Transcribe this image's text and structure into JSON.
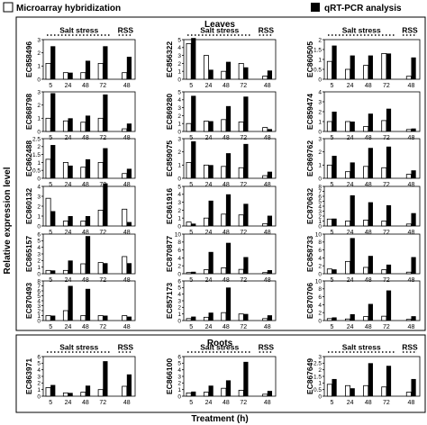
{
  "legend": {
    "microarray_label": "Microarray hybridization",
    "qrt_label": "qRT-PCR analysis",
    "microarray_color": "#ffffff",
    "qrt_color": "#000000"
  },
  "section_labels": {
    "leaves": "Leaves",
    "roots": "Roots"
  },
  "axis": {
    "ylabel": "Relative expression level",
    "xlabel": "Treatment (h)",
    "x_ticks": [
      "5",
      "24",
      "48",
      "72",
      "48"
    ],
    "salt_label": "Salt stress",
    "rss_label": "RSS"
  },
  "chart_data": [
    {
      "type": "bar",
      "gene": "EC858496",
      "ylim": [
        0,
        3
      ],
      "y_ticks": [
        0,
        1,
        2,
        3
      ],
      "categories": [
        "5",
        "24",
        "48",
        "72",
        "48"
      ],
      "series": [
        {
          "name": "Microarray hybridization",
          "values": [
            1.2,
            0.5,
            0.5,
            1.2,
            0.5
          ]
        },
        {
          "name": "qRT-PCR analysis",
          "values": [
            2.5,
            0.5,
            1.4,
            2.5,
            1.7
          ]
        }
      ]
    },
    {
      "type": "bar",
      "gene": "EC856322",
      "ylim": [
        0,
        5
      ],
      "y_ticks": [
        0,
        1,
        2,
        3,
        4,
        5
      ],
      "categories": [
        "5",
        "24",
        "48",
        "72",
        "48"
      ],
      "series": [
        {
          "name": "Microarray hybridization",
          "values": [
            4.5,
            3.0,
            1.0,
            2.0,
            0.4
          ]
        },
        {
          "name": "qRT-PCR analysis",
          "values": [
            5.2,
            1.2,
            2.2,
            1.5,
            1.1
          ]
        }
      ]
    },
    {
      "type": "bar",
      "gene": "EC860505",
      "ylim": [
        0,
        2
      ],
      "y_ticks": [
        0,
        0.5,
        1,
        1.5,
        2
      ],
      "categories": [
        "5",
        "24",
        "48",
        "72",
        "48"
      ],
      "series": [
        {
          "name": "Microarray hybridization",
          "values": [
            0.9,
            0.5,
            0.7,
            1.3,
            0.15
          ]
        },
        {
          "name": "qRT-PCR analysis",
          "values": [
            1.7,
            1.2,
            1.2,
            1.3,
            1.1
          ]
        }
      ]
    },
    {
      "type": "bar",
      "gene": "EC868798",
      "ylim": [
        0,
        3
      ],
      "y_ticks": [
        0,
        1,
        2,
        3
      ],
      "categories": [
        "5",
        "24",
        "48",
        "72",
        "48"
      ],
      "series": [
        {
          "name": "Microarray hybridization",
          "values": [
            1.0,
            0.8,
            0.7,
            1.0,
            0.2
          ]
        },
        {
          "name": "qRT-PCR analysis",
          "values": [
            2.9,
            1.0,
            1.2,
            2.8,
            0.6
          ]
        }
      ]
    },
    {
      "type": "bar",
      "gene": "EC869280",
      "ylim": [
        0,
        5
      ],
      "y_ticks": [
        0,
        1,
        2,
        3,
        4,
        5
      ],
      "categories": [
        "5",
        "24",
        "48",
        "72",
        "48"
      ],
      "series": [
        {
          "name": "Microarray hybridization",
          "values": [
            1.0,
            1.3,
            1.5,
            1.2,
            0.5
          ]
        },
        {
          "name": "qRT-PCR analysis",
          "values": [
            4.5,
            1.3,
            3.2,
            4.4,
            0.3
          ]
        }
      ]
    },
    {
      "type": "bar",
      "gene": "EC859474",
      "ylim": [
        0,
        4
      ],
      "y_ticks": [
        0,
        1,
        2,
        3,
        4
      ],
      "categories": [
        "5",
        "24",
        "48",
        "72",
        "48"
      ],
      "series": [
        {
          "name": "Microarray hybridization",
          "values": [
            1.0,
            1.0,
            0.5,
            1.1,
            0.2
          ]
        },
        {
          "name": "qRT-PCR analysis",
          "values": [
            2.0,
            1.0,
            1.8,
            2.3,
            0.3
          ]
        }
      ]
    },
    {
      "type": "bar",
      "gene": "EC862488",
      "ylim": [
        0,
        2.5
      ],
      "y_ticks": [
        0,
        0.5,
        1,
        1.5,
        2,
        2.5
      ],
      "categories": [
        "5",
        "24",
        "48",
        "72",
        "48"
      ],
      "series": [
        {
          "name": "Microarray hybridization",
          "values": [
            1.2,
            1.0,
            0.7,
            1.0,
            0.3
          ]
        },
        {
          "name": "qRT-PCR analysis",
          "values": [
            2.1,
            0.8,
            1.2,
            1.9,
            0.6
          ]
        }
      ]
    },
    {
      "type": "bar",
      "gene": "EC859075",
      "ylim": [
        0,
        3
      ],
      "y_ticks": [
        0,
        1,
        2,
        3
      ],
      "categories": [
        "5",
        "24",
        "48",
        "72",
        "48"
      ],
      "series": [
        {
          "name": "Microarray hybridization",
          "values": [
            1.2,
            1.0,
            0.9,
            0.8,
            0.2
          ]
        },
        {
          "name": "qRT-PCR analysis",
          "values": [
            2.8,
            1.0,
            1.9,
            2.6,
            0.5
          ]
        }
      ]
    },
    {
      "type": "bar",
      "gene": "EC869762",
      "ylim": [
        0,
        3
      ],
      "y_ticks": [
        0,
        1,
        2,
        3
      ],
      "categories": [
        "5",
        "24",
        "48",
        "72",
        "48"
      ],
      "series": [
        {
          "name": "Microarray hybridization",
          "values": [
            1.0,
            0.5,
            0.9,
            0.8,
            0.3
          ]
        },
        {
          "name": "qRT-PCR analysis",
          "values": [
            1.7,
            1.2,
            2.3,
            2.4,
            0.6
          ]
        }
      ]
    },
    {
      "type": "bar",
      "gene": "EC860132",
      "ylim": [
        0,
        4
      ],
      "y_ticks": [
        0,
        1,
        2,
        3,
        4
      ],
      "categories": [
        "5",
        "24",
        "48",
        "72",
        "48"
      ],
      "series": [
        {
          "name": "Microarray hybridization",
          "values": [
            2.8,
            0.5,
            0.5,
            1.6,
            1.7
          ]
        },
        {
          "name": "qRT-PCR analysis",
          "values": [
            1.5,
            1.0,
            1.0,
            4.3,
            0.4
          ]
        }
      ]
    },
    {
      "type": "bar",
      "gene": "EC861916",
      "ylim": [
        0,
        5
      ],
      "y_ticks": [
        0,
        1,
        2,
        3,
        4,
        5
      ],
      "categories": [
        "5",
        "24",
        "48",
        "72",
        "48"
      ],
      "series": [
        {
          "name": "Microarray hybridization",
          "values": [
            0.5,
            1.0,
            1.5,
            1.4,
            0.3
          ]
        },
        {
          "name": "qRT-PCR analysis",
          "values": [
            0.3,
            3.2,
            4.0,
            2.8,
            1.3
          ]
        }
      ]
    },
    {
      "type": "bar",
      "gene": "EC870632",
      "ylim": [
        0,
        8
      ],
      "y_ticks": [
        0,
        1,
        2,
        3,
        4,
        5,
        6,
        7,
        8
      ],
      "categories": [
        "5",
        "24",
        "48",
        "72",
        "48"
      ],
      "series": [
        {
          "name": "Microarray hybridization",
          "values": [
            1.4,
            1.0,
            1.2,
            1.0,
            0.4
          ]
        },
        {
          "name": "qRT-PCR analysis",
          "values": [
            1.5,
            6.2,
            4.8,
            4.2,
            2.6
          ]
        }
      ]
    },
    {
      "type": "bar",
      "gene": "EC865157",
      "ylim": [
        0,
        6
      ],
      "y_ticks": [
        0,
        1,
        2,
        3,
        4,
        5,
        6
      ],
      "categories": [
        "5",
        "24",
        "48",
        "72",
        "48"
      ],
      "series": [
        {
          "name": "Microarray hybridization",
          "values": [
            0.5,
            0.5,
            1.5,
            1.7,
            2.6
          ]
        },
        {
          "name": "qRT-PCR analysis",
          "values": [
            0.5,
            2.0,
            5.7,
            1.6,
            1.6
          ]
        }
      ]
    },
    {
      "type": "bar",
      "gene": "EC870877",
      "ylim": [
        0,
        10
      ],
      "y_ticks": [
        0,
        2,
        4,
        6,
        8,
        10
      ],
      "categories": [
        "5",
        "24",
        "48",
        "72",
        "48"
      ],
      "series": [
        {
          "name": "Microarray hybridization",
          "values": [
            0.3,
            1.0,
            1.5,
            1.1,
            0.3
          ]
        },
        {
          "name": "qRT-PCR analysis",
          "values": [
            0.5,
            5.5,
            7.8,
            4.2,
            0.9
          ]
        }
      ]
    },
    {
      "type": "bar",
      "gene": "EC858733",
      "ylim": [
        0,
        10
      ],
      "y_ticks": [
        0,
        2,
        4,
        6,
        8,
        10
      ],
      "categories": [
        "5",
        "24",
        "48",
        "72",
        "48"
      ],
      "series": [
        {
          "name": "Microarray hybridization",
          "values": [
            1.2,
            3.1,
            1.6,
            1.0,
            0.4
          ]
        },
        {
          "name": "qRT-PCR analysis",
          "values": [
            1.1,
            9.0,
            4.5,
            2.3,
            4.2
          ]
        }
      ]
    },
    {
      "type": "bar",
      "gene": "EC870493",
      "ylim": [
        0,
        8
      ],
      "y_ticks": [
        0,
        1,
        2,
        3,
        4,
        5,
        6,
        7,
        8
      ],
      "categories": [
        "5",
        "24",
        "48",
        "72",
        "48"
      ],
      "series": [
        {
          "name": "Microarray hybridization",
          "values": [
            1.0,
            2.0,
            1.0,
            1.0,
            1.0
          ]
        },
        {
          "name": "qRT-PCR analysis",
          "values": [
            1.0,
            7.0,
            6.4,
            1.0,
            0.8
          ]
        }
      ]
    },
    {
      "type": "bar",
      "gene": "EC857173",
      "ylim": [
        0,
        6
      ],
      "y_ticks": [
        0,
        1,
        2,
        3,
        4,
        5,
        6
      ],
      "categories": [
        "5",
        "24",
        "48",
        "72",
        "48"
      ],
      "series": [
        {
          "name": "Microarray hybridization",
          "values": [
            0.3,
            0.5,
            1.2,
            1.0,
            0.3
          ]
        },
        {
          "name": "qRT-PCR analysis",
          "values": [
            0.6,
            1.2,
            5.0,
            1.0,
            0.8
          ]
        }
      ]
    },
    {
      "type": "bar",
      "gene": "EC870706",
      "ylim": [
        0,
        10
      ],
      "y_ticks": [
        0,
        2,
        4,
        6,
        8,
        10
      ],
      "categories": [
        "5",
        "24",
        "48",
        "72",
        "48"
      ],
      "series": [
        {
          "name": "Microarray hybridization",
          "values": [
            0.5,
            0.4,
            1.0,
            1.1,
            0.3
          ]
        },
        {
          "name": "qRT-PCR analysis",
          "values": [
            0.8,
            1.6,
            4.2,
            7.6,
            1.1
          ]
        }
      ]
    },
    {
      "type": "bar",
      "gene": "EC863971",
      "ylim": [
        0,
        6
      ],
      "y_ticks": [
        0,
        1,
        2,
        3,
        4,
        5,
        6
      ],
      "categories": [
        "5",
        "24",
        "48",
        "72",
        "48"
      ],
      "series": [
        {
          "name": "Microarray hybridization",
          "values": [
            1.3,
            0.5,
            0.6,
            1.0,
            1.5
          ]
        },
        {
          "name": "qRT-PCR analysis",
          "values": [
            1.7,
            0.5,
            1.6,
            5.3,
            3.3
          ]
        }
      ]
    },
    {
      "type": "bar",
      "gene": "EC866100",
      "ylim": [
        0,
        6
      ],
      "y_ticks": [
        0,
        1,
        2,
        3,
        4,
        5,
        6
      ],
      "categories": [
        "5",
        "24",
        "48",
        "72",
        "48"
      ],
      "series": [
        {
          "name": "Microarray hybridization",
          "values": [
            0.5,
            0.6,
            1.2,
            0.9,
            0.3
          ]
        },
        {
          "name": "qRT-PCR analysis",
          "values": [
            0.7,
            1.6,
            2.4,
            5.2,
            0.8
          ]
        }
      ]
    },
    {
      "type": "bar",
      "gene": "EC867649",
      "ylim": [
        0,
        3
      ],
      "y_ticks": [
        0,
        0.5,
        1,
        1.5,
        2,
        2.5,
        3
      ],
      "categories": [
        "5",
        "24",
        "48",
        "72",
        "48"
      ],
      "series": [
        {
          "name": "Microarray hybridization",
          "values": [
            0.9,
            0.8,
            0.8,
            0.7,
            0.3
          ]
        },
        {
          "name": "qRT-PCR analysis",
          "values": [
            1.3,
            0.6,
            2.5,
            2.3,
            1.3
          ]
        }
      ]
    }
  ]
}
